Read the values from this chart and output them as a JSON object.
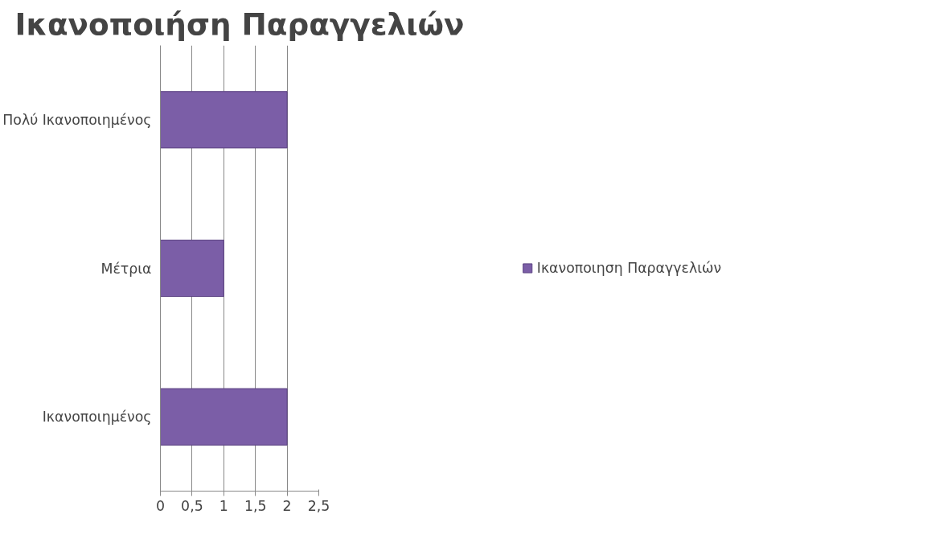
{
  "chart_data": {
    "type": "bar",
    "orientation": "horizontal",
    "title": "Ικανοποιήση Παραγγελιών",
    "categories": [
      "Πολύ Ικανοποιημένος",
      "Μέτρια",
      "Ικανοποιημένος"
    ],
    "series": [
      {
        "name": "Ικανοποιηση Παραγγελιών",
        "color": "#7b5ea7",
        "values": [
          2,
          1,
          2
        ]
      }
    ],
    "xlim": [
      0,
      2.5
    ],
    "xticks": [
      0,
      {
        "value": 0.5,
        "label": "0,5"
      },
      1,
      {
        "value": 1.5,
        "label": "1,5"
      },
      2,
      {
        "value": 2.5,
        "label": "2,5"
      }
    ],
    "grid": "x",
    "legend": "right"
  }
}
